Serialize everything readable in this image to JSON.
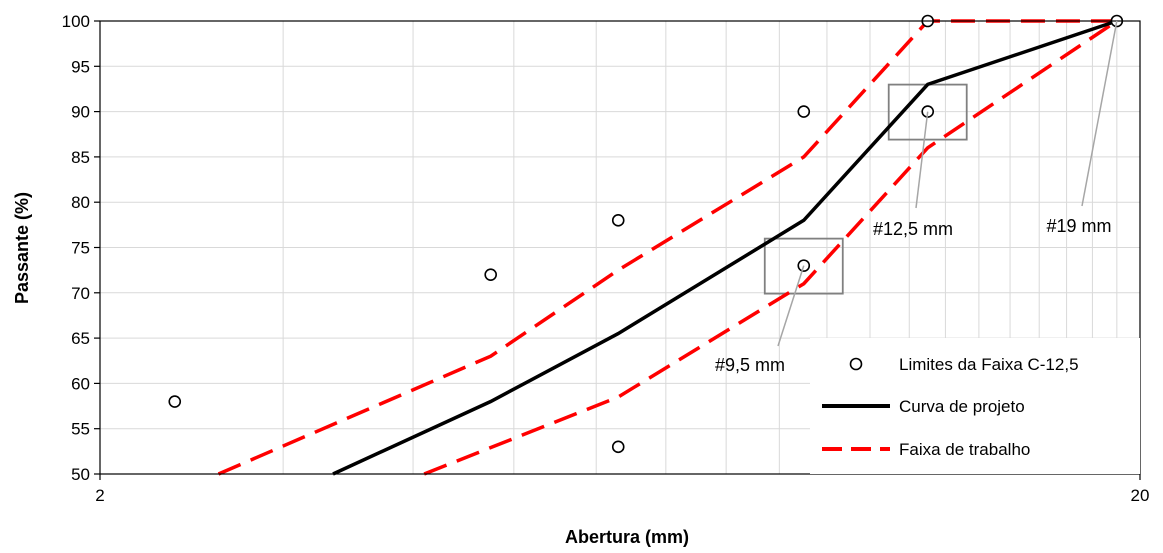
{
  "chart_data": {
    "type": "line",
    "xlabel": "Abertura (mm)",
    "ylabel": "Passante (%)",
    "xscale": "log",
    "xlim": [
      2,
      20
    ],
    "ylim": [
      50,
      100
    ],
    "x_tick_labels": [
      {
        "value": 2,
        "label": "2"
      },
      {
        "value": 20,
        "label": "20"
      }
    ],
    "y_ticks": [
      50,
      55,
      60,
      65,
      70,
      75,
      80,
      85,
      90,
      95,
      100
    ],
    "grid": true,
    "legend_position": "bottom-right",
    "series": [
      {
        "name": "Limites da Faixa C-12,5",
        "style": "markers",
        "color": "#000000",
        "points": [
          {
            "x": 2.36,
            "y": 58
          },
          {
            "x": 4.75,
            "y": 72
          },
          {
            "x": 6.3,
            "y": 78
          },
          {
            "x": 6.3,
            "y": 53
          },
          {
            "x": 9.5,
            "y": 90
          },
          {
            "x": 9.5,
            "y": 73
          },
          {
            "x": 12.5,
            "y": 100
          },
          {
            "x": 12.5,
            "y": 90
          },
          {
            "x": 19,
            "y": 100
          }
        ]
      },
      {
        "name": "Curva de projeto",
        "style": "solid",
        "color": "#000000",
        "points": [
          {
            "x": 3.35,
            "y": 50
          },
          {
            "x": 4.75,
            "y": 58
          },
          {
            "x": 6.3,
            "y": 65.5
          },
          {
            "x": 9.5,
            "y": 78
          },
          {
            "x": 12.5,
            "y": 93
          },
          {
            "x": 19,
            "y": 100
          }
        ]
      },
      {
        "name": "Faixa de trabalho",
        "style": "dashed",
        "color": "#ff0000",
        "points": [
          {
            "x": 2.6,
            "y": 50
          },
          {
            "x": 4.75,
            "y": 63
          },
          {
            "x": 6.3,
            "y": 72.5
          },
          {
            "x": 9.5,
            "y": 85
          },
          {
            "x": 12.5,
            "y": 100
          },
          {
            "x": 19,
            "y": 100
          }
        ],
        "lower_points": [
          {
            "x": 4.1,
            "y": 50
          },
          {
            "x": 6.3,
            "y": 58.5
          },
          {
            "x": 9.5,
            "y": 71
          },
          {
            "x": 12.5,
            "y": 86
          },
          {
            "x": 19,
            "y": 100
          }
        ]
      }
    ],
    "annotations": [
      {
        "text": "#9,5 mm",
        "x": 9.5,
        "y": 73
      },
      {
        "text": "#12,5 mm",
        "x": 12.5,
        "y": 90
      },
      {
        "text": "#19 mm",
        "x": 19,
        "y": 100
      }
    ]
  }
}
